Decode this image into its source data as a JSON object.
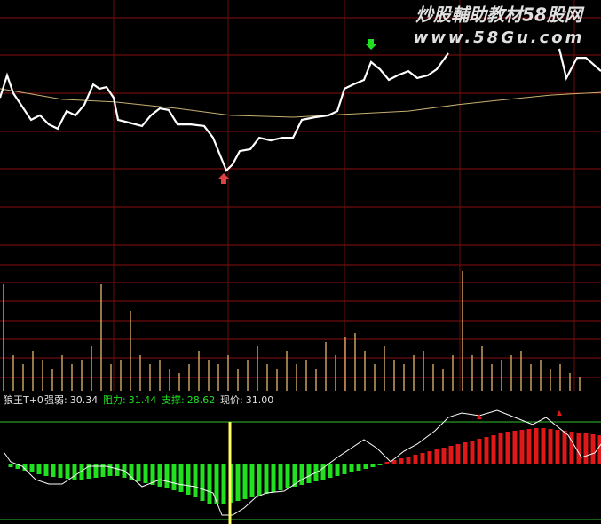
{
  "watermark": {
    "title": "炒股輔助教材58股网",
    "url": "www.58Gu.com"
  },
  "indicator": {
    "name": "狼王T+0",
    "fields": [
      {
        "label": "强弱:",
        "value": "30.34"
      },
      {
        "label": "阻力:",
        "value": "31.44"
      },
      {
        "label": "支撑:",
        "value": "28.62"
      },
      {
        "label": "现价:",
        "value": "31.00"
      }
    ]
  },
  "chart_data": [
    {
      "type": "line",
      "xlim": [
        0,
        677
      ],
      "ylim": [
        0,
        100
      ],
      "series": [
        {
          "color": "#ffffff",
          "x": [
            0,
            8,
            15,
            25,
            35,
            45,
            55,
            65,
            75,
            85,
            95,
            105,
            112,
            120,
            128,
            133,
            145,
            160,
            170,
            180,
            190,
            200,
            215,
            230,
            240,
            248,
            255,
            262,
            270,
            282,
            292,
            305,
            318,
            330,
            340,
            355,
            370,
            380,
            388,
            398,
            410,
            418,
            428,
            438,
            448,
            460,
            470,
            482,
            492,
            505,
            570,
            630,
            638,
            650,
            660,
            677
          ],
          "values": [
            63.3,
            71.7,
            65,
            60,
            55,
            56.7,
            53.3,
            51.7,
            58.3,
            56.7,
            60.7,
            68.3,
            66.7,
            67.3,
            63.3,
            55,
            54,
            52.7,
            56.7,
            59.3,
            58.7,
            53.3,
            53.3,
            52.7,
            48.3,
            41.7,
            36,
            38.3,
            43.3,
            44,
            48.3,
            47.3,
            48.3,
            48.3,
            55,
            56,
            56.7,
            58.3,
            66.7,
            68.3,
            70,
            76.7,
            74,
            70,
            71.7,
            73.3,
            70.7,
            71.7,
            74,
            80,
            null,
            81.7,
            70.7,
            78.3,
            78.3,
            73.3
          ]
        },
        {
          "color": "#c8b070",
          "x": [
            0,
            30,
            70,
            130,
            200,
            260,
            330,
            400,
            460,
            515,
            560,
            620,
            677
          ],
          "values": [
            66.7,
            65,
            62.7,
            61.7,
            59.3,
            56.7,
            56,
            57.3,
            58.3,
            60.7,
            62.3,
            64.3,
            65.3
          ]
        }
      ]
    },
    {
      "type": "bar",
      "color": "#c8a060",
      "ylim": [
        0,
        130
      ],
      "values": [
        120,
        40,
        30,
        45,
        35,
        25,
        40,
        30,
        35,
        50,
        120,
        30,
        35,
        90,
        40,
        30,
        35,
        25,
        20,
        30,
        45,
        35,
        30,
        40,
        25,
        35,
        50,
        30,
        25,
        45,
        30,
        35,
        25,
        55,
        40,
        60,
        65,
        45,
        30,
        50,
        35,
        30,
        40,
        45,
        30,
        25,
        40,
        135,
        40,
        50,
        30,
        35,
        40,
        45,
        30,
        35,
        25,
        30,
        20,
        15
      ]
    },
    {
      "type": "combo",
      "ylim": [
        -68,
        62
      ],
      "xlim": [
        0,
        677
      ],
      "pos_color": "#e01818",
      "neg_color": "#20e020",
      "values": [
        -4,
        -6,
        -8,
        -10,
        -12,
        -14,
        -15,
        -16,
        -17,
        -18,
        -18,
        -17,
        -16,
        -15,
        -14,
        -14,
        -16,
        -18,
        -20,
        -22,
        -24,
        -26,
        -28,
        -30,
        -32,
        -35,
        -38,
        -42,
        -45,
        -46,
        -45,
        -44,
        -42,
        -40,
        -38,
        -36,
        -34,
        -32,
        -30,
        -28,
        -26,
        -24,
        -22,
        -20,
        -18,
        -16,
        -14,
        -12,
        -10,
        -8,
        -6,
        -4,
        -2,
        2,
        4,
        6,
        8,
        10,
        12,
        14,
        16,
        18,
        20,
        22,
        24,
        26,
        28,
        30,
        32,
        34,
        36,
        37,
        38,
        39,
        40,
        40,
        39,
        38,
        37,
        36,
        35,
        34,
        33,
        32
      ],
      "series": [
        {
          "color": "#ffffff",
          "x": [
            5,
            12,
            25,
            40,
            55,
            70,
            85,
            100,
            120,
            140,
            160,
            180,
            200,
            220,
            240,
            250,
            262,
            275,
            288,
            300,
            320,
            340,
            360,
            380,
            395,
            410,
            425,
            440,
            455,
            470,
            490,
            505,
            520,
            540,
            560,
            580,
            600,
            615,
            625,
            640,
            655,
            670,
            677
          ],
          "values": [
            12,
            2,
            -3,
            -18,
            -23,
            -23,
            -13,
            -3,
            -3,
            -8,
            -26,
            -18,
            -23,
            -26,
            -33,
            -58,
            -58,
            -50,
            -38,
            -33,
            -31,
            -18,
            -8,
            7,
            17,
            27,
            17,
            2,
            14,
            22,
            37,
            52,
            57,
            54,
            60,
            52,
            44,
            52,
            44,
            32,
            7,
            12,
            22
          ]
        }
      ]
    }
  ]
}
